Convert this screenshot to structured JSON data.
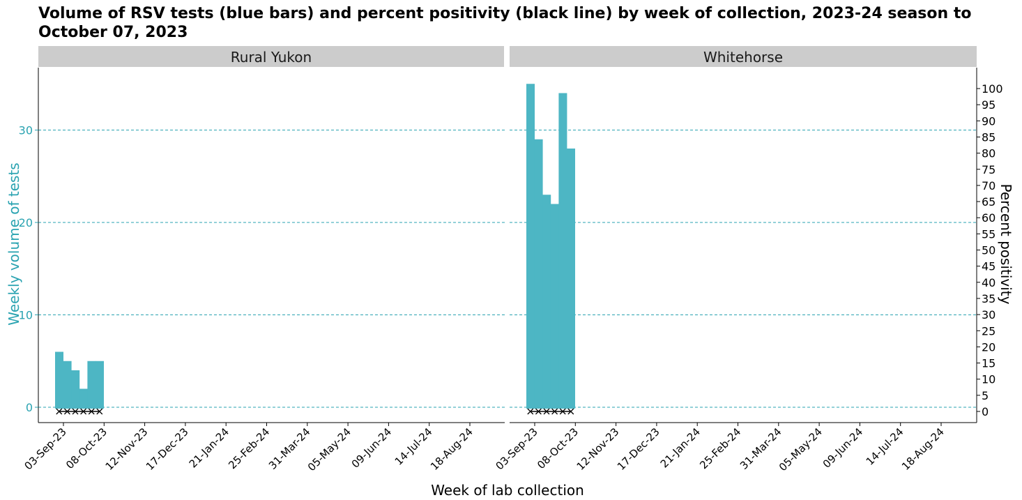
{
  "chart_data": {
    "type": "bar",
    "title": "Volume of RSV tests (blue bars) and percent positivity (black line) by week of collection, 2023-24 season to October 07, 2023",
    "xlabel": "Week of lab collection",
    "ylabel": "Weekly volume of tests",
    "y2label": "Percent positivity",
    "ylim": [
      0,
      37
    ],
    "y_ticks": [
      0,
      10,
      20,
      30
    ],
    "y2lim": [
      0,
      106
    ],
    "y2_ticks": [
      0,
      5,
      10,
      15,
      20,
      25,
      30,
      35,
      40,
      45,
      50,
      55,
      60,
      65,
      70,
      75,
      80,
      85,
      90,
      95,
      100
    ],
    "x_tick_labels": [
      "03-Sep-23",
      "08-Oct-23",
      "12-Nov-23",
      "17-Dec-23",
      "21-Jan-24",
      "25-Feb-24",
      "31-Mar-24",
      "05-May-24",
      "09-Jun-24",
      "14-Jul-24",
      "18-Aug-24"
    ],
    "categories": [
      "03-Sep-23",
      "10-Sep-23",
      "17-Sep-23",
      "24-Sep-23",
      "01-Oct-23",
      "08-Oct-23"
    ],
    "grid": "dashed horizontal",
    "bar_color": "#4db6c4",
    "axis_color": "#2aa3b1",
    "line_color": "#000000",
    "panels": [
      {
        "name": "Rural Yukon",
        "series": [
          {
            "name": "Weekly volume of tests",
            "values": [
              6,
              5,
              4,
              2,
              5,
              5
            ]
          },
          {
            "name": "Percent positivity",
            "values": [
              0,
              0,
              0,
              0,
              0,
              0
            ]
          }
        ]
      },
      {
        "name": "Whitehorse",
        "series": [
          {
            "name": "Weekly volume of tests",
            "values": [
              35,
              29,
              23,
              22,
              34,
              28
            ]
          },
          {
            "name": "Percent positivity",
            "values": [
              0,
              0,
              0,
              0,
              0,
              0
            ]
          }
        ]
      }
    ]
  }
}
